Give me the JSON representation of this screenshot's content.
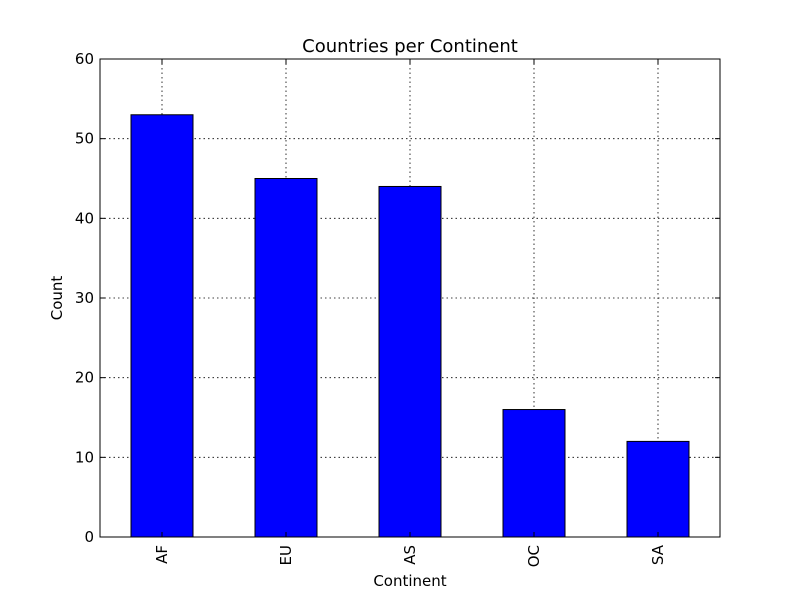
{
  "chart_data": {
    "type": "bar",
    "title": "Countries per Continent",
    "xlabel": "Continent",
    "ylabel": "Count",
    "categories": [
      "AF",
      "EU",
      "AS",
      "OC",
      "SA"
    ],
    "values": [
      53,
      45,
      44,
      16,
      12
    ],
    "ylim": [
      0,
      60
    ],
    "yticks": [
      0,
      10,
      20,
      30,
      40,
      50,
      60
    ],
    "grid": true,
    "bar_color": "#0000ff"
  }
}
